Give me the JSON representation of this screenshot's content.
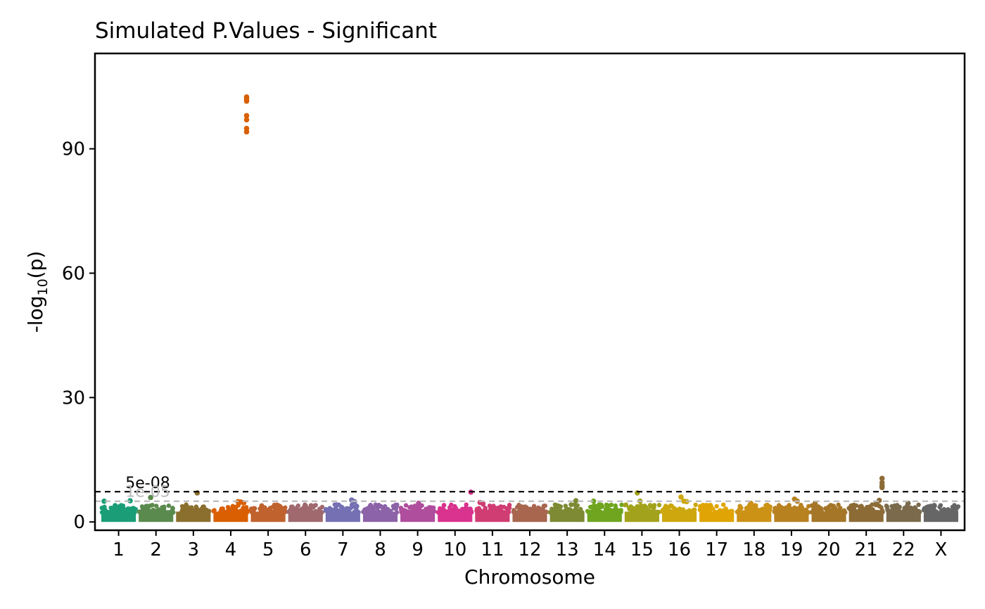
{
  "chart_data": {
    "type": "scatter",
    "title": "Simulated P.Values - Significant",
    "xlabel": "Chromosome",
    "ylabel_main": "-log",
    "ylabel_sub": "10",
    "ylabel_arg": "(p)",
    "ylim": [
      -2,
      113
    ],
    "yticks": [
      0,
      30,
      60,
      90
    ],
    "grid": false,
    "legend": "none",
    "chromosomes": [
      "1",
      "2",
      "3",
      "4",
      "5",
      "6",
      "7",
      "8",
      "9",
      "10",
      "11",
      "12",
      "13",
      "14",
      "15",
      "16",
      "17",
      "18",
      "19",
      "20",
      "21",
      "22",
      "X"
    ],
    "colors": [
      "#1B9E77",
      "#5B8A4E",
      "#8B6F2E",
      "#D95F02",
      "#C0622E",
      "#A0696E",
      "#7570B3",
      "#8C63A8",
      "#B04E9E",
      "#D9338E",
      "#D03D72",
      "#A8664F",
      "#7E8A34",
      "#6FA51F",
      "#A3A21C",
      "#CDA70E",
      "#E0A505",
      "#CC9216",
      "#B88120",
      "#A57628",
      "#8D6B36",
      "#7B6A4B",
      "#666666"
    ],
    "thresholds": [
      {
        "label": "5e-08",
        "value": 7.3,
        "color": "#000000"
      },
      {
        "label": "1e-05",
        "value": 5.0,
        "color": "#BBBBBB"
      }
    ],
    "peaks": [
      {
        "chromosome": "1",
        "values": [
          5.0,
          5.1
        ]
      },
      {
        "chromosome": "2",
        "values": [
          5.9
        ]
      },
      {
        "chromosome": "3",
        "values": [
          7.0
        ]
      },
      {
        "chromosome": "4",
        "values": [
          4.6,
          4.8,
          4.9,
          102.5,
          102.0,
          101.5,
          98.0,
          97.0,
          94.9,
          94.1
        ]
      },
      {
        "chromosome": "7",
        "values": [
          4.9,
          5.3
        ]
      },
      {
        "chromosome": "9",
        "values": [
          4.5
        ]
      },
      {
        "chromosome": "10",
        "values": [
          7.2
        ]
      },
      {
        "chromosome": "11",
        "values": [
          4.5,
          4.7
        ]
      },
      {
        "chromosome": "13",
        "values": [
          5.1
        ]
      },
      {
        "chromosome": "14",
        "values": [
          5.0
        ]
      },
      {
        "chromosome": "15",
        "values": [
          5.0,
          7.0
        ]
      },
      {
        "chromosome": "16",
        "values": [
          4.9,
          5.0,
          6.0
        ]
      },
      {
        "chromosome": "18",
        "values": [
          4.5
        ]
      },
      {
        "chromosome": "19",
        "values": [
          5.0,
          5.5
        ]
      },
      {
        "chromosome": "20",
        "values": [
          4.5
        ]
      },
      {
        "chromosome": "21",
        "values": [
          10.5,
          9.5,
          8.8,
          8.3,
          5.2,
          4.5
        ]
      },
      {
        "chromosome": "22",
        "values": [
          4.5
        ]
      }
    ]
  }
}
